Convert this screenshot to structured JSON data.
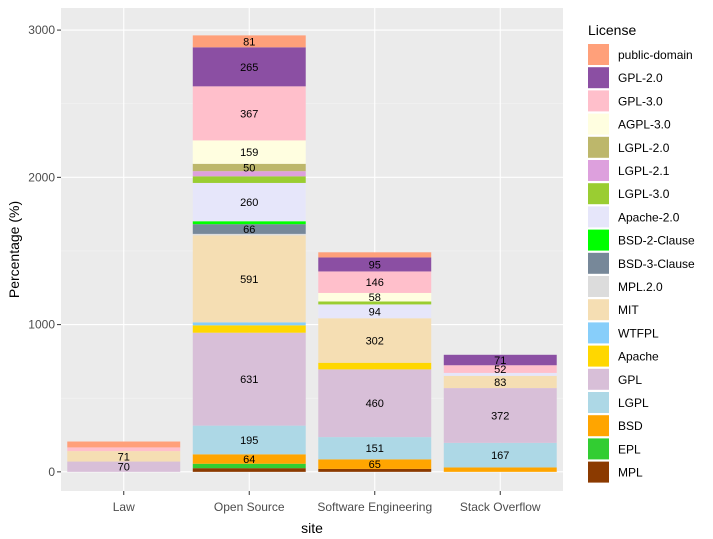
{
  "chart_data": {
    "type": "bar",
    "stacked": true,
    "title": "",
    "xlabel": "site",
    "ylabel": "Percentage (%)",
    "ylim": [
      -130,
      3150
    ],
    "yticks": [
      0,
      1000,
      2000,
      3000
    ],
    "yticklabels": [
      "0",
      "1000",
      "2000",
      "3000"
    ],
    "grid": true,
    "legend_title": "License",
    "legend_position": "right",
    "categories": [
      "Law",
      "Open Source",
      "Software Engineering",
      "Stack Overflow"
    ],
    "licenses": [
      {
        "name": "public-domain",
        "color": "#FFA07A"
      },
      {
        "name": "GPL-2.0",
        "color": "#8B4FA3"
      },
      {
        "name": "GPL-3.0",
        "color": "#FFBFCB"
      },
      {
        "name": "AGPL-3.0",
        "color": "#FFFEE0"
      },
      {
        "name": "LGPL-2.0",
        "color": "#BDB76B"
      },
      {
        "name": "LGPL-2.1",
        "color": "#DDA0DD"
      },
      {
        "name": "LGPL-3.0",
        "color": "#9ACD32"
      },
      {
        "name": "Apache-2.0",
        "color": "#E6E6FA"
      },
      {
        "name": "BSD-2-Clause",
        "color": "#00FF00"
      },
      {
        "name": "BSD-3-Clause",
        "color": "#778899"
      },
      {
        "name": "MPL.2.0",
        "color": "#DCDCDC"
      },
      {
        "name": "MIT",
        "color": "#F5DEB3"
      },
      {
        "name": "WTFPL",
        "color": "#87CEFA"
      },
      {
        "name": "Apache",
        "color": "#FFD700"
      },
      {
        "name": "GPL",
        "color": "#D8BFD8"
      },
      {
        "name": "LGPL",
        "color": "#ADD8E6"
      },
      {
        "name": "BSD",
        "color": "#FFA500"
      },
      {
        "name": "EPL",
        "color": "#32CD32"
      },
      {
        "name": "MPL",
        "color": "#8B3A00"
      }
    ],
    "stack_order": [
      "MPL",
      "EPL",
      "BSD",
      "LGPL",
      "GPL",
      "Apache",
      "WTFPL",
      "MIT",
      "MPL.2.0",
      "BSD-3-Clause",
      "BSD-2-Clause",
      "Apache-2.0",
      "LGPL-3.0",
      "LGPL-2.1",
      "LGPL-2.0",
      "AGPL-3.0",
      "GPL-3.0",
      "GPL-2.0",
      "public-domain"
    ],
    "series": [
      {
        "name": "MPL",
        "values": [
          0,
          25,
          20,
          0
        ]
      },
      {
        "name": "EPL",
        "values": [
          0,
          30,
          0,
          0
        ]
      },
      {
        "name": "BSD",
        "values": [
          0,
          64,
          65,
          30
        ]
      },
      {
        "name": "LGPL",
        "values": [
          0,
          195,
          151,
          167
        ]
      },
      {
        "name": "GPL",
        "values": [
          70,
          631,
          460,
          372
        ]
      },
      {
        "name": "Apache",
        "values": [
          0,
          50,
          45,
          0
        ]
      },
      {
        "name": "WTFPL",
        "values": [
          0,
          20,
          0,
          0
        ]
      },
      {
        "name": "MIT",
        "values": [
          71,
          591,
          302,
          83
        ]
      },
      {
        "name": "MPL.2.0",
        "values": [
          0,
          10,
          0,
          0
        ]
      },
      {
        "name": "BSD-3-Clause",
        "values": [
          0,
          66,
          0,
          0
        ]
      },
      {
        "name": "BSD-2-Clause",
        "values": [
          0,
          20,
          0,
          0
        ]
      },
      {
        "name": "Apache-2.0",
        "values": [
          0,
          260,
          94,
          20
        ]
      },
      {
        "name": "LGPL-3.0",
        "values": [
          0,
          45,
          20,
          0
        ]
      },
      {
        "name": "LGPL-2.1",
        "values": [
          0,
          35,
          0,
          0
        ]
      },
      {
        "name": "LGPL-2.0",
        "values": [
          0,
          50,
          0,
          0
        ]
      },
      {
        "name": "AGPL-3.0",
        "values": [
          0,
          159,
          58,
          0
        ]
      },
      {
        "name": "GPL-3.0",
        "values": [
          25,
          367,
          146,
          52
        ]
      },
      {
        "name": "GPL-2.0",
        "values": [
          0,
          265,
          95,
          71
        ]
      },
      {
        "name": "public-domain",
        "values": [
          40,
          81,
          35,
          0
        ]
      }
    ],
    "data_labels": [
      {
        "category": "Law",
        "series": "GPL",
        "text": "70"
      },
      {
        "category": "Law",
        "series": "MIT",
        "text": "71"
      },
      {
        "category": "Open Source",
        "series": "BSD",
        "text": "64"
      },
      {
        "category": "Open Source",
        "series": "LGPL",
        "text": "195"
      },
      {
        "category": "Open Source",
        "series": "GPL",
        "text": "631"
      },
      {
        "category": "Open Source",
        "series": "MIT",
        "text": "591"
      },
      {
        "category": "Open Source",
        "series": "BSD-3-Clause",
        "text": "66"
      },
      {
        "category": "Open Source",
        "series": "Apache-2.0",
        "text": "260"
      },
      {
        "category": "Open Source",
        "series": "LGPL-2.0",
        "text": "50"
      },
      {
        "category": "Open Source",
        "series": "AGPL-3.0",
        "text": "159"
      },
      {
        "category": "Open Source",
        "series": "GPL-3.0",
        "text": "367"
      },
      {
        "category": "Open Source",
        "series": "GPL-2.0",
        "text": "265"
      },
      {
        "category": "Open Source",
        "series": "public-domain",
        "text": "81"
      },
      {
        "category": "Software Engineering",
        "series": "BSD",
        "text": "65"
      },
      {
        "category": "Software Engineering",
        "series": "LGPL",
        "text": "151"
      },
      {
        "category": "Software Engineering",
        "series": "GPL",
        "text": "460"
      },
      {
        "category": "Software Engineering",
        "series": "MIT",
        "text": "302"
      },
      {
        "category": "Software Engineering",
        "series": "Apache-2.0",
        "text": "94"
      },
      {
        "category": "Software Engineering",
        "series": "AGPL-3.0",
        "text": "58"
      },
      {
        "category": "Software Engineering",
        "series": "GPL-3.0",
        "text": "146"
      },
      {
        "category": "Software Engineering",
        "series": "GPL-2.0",
        "text": "95"
      },
      {
        "category": "Stack Overflow",
        "series": "LGPL",
        "text": "167"
      },
      {
        "category": "Stack Overflow",
        "series": "GPL",
        "text": "372"
      },
      {
        "category": "Stack Overflow",
        "series": "MIT",
        "text": "83"
      },
      {
        "category": "Stack Overflow",
        "series": "GPL-3.0",
        "text": "52"
      },
      {
        "category": "Stack Overflow",
        "series": "GPL-2.0",
        "text": "71"
      }
    ]
  },
  "colors": {
    "panel_background": "#EBEBEB",
    "grid_major": "#FFFFFF",
    "grid_minor": "#F4F4F4"
  }
}
